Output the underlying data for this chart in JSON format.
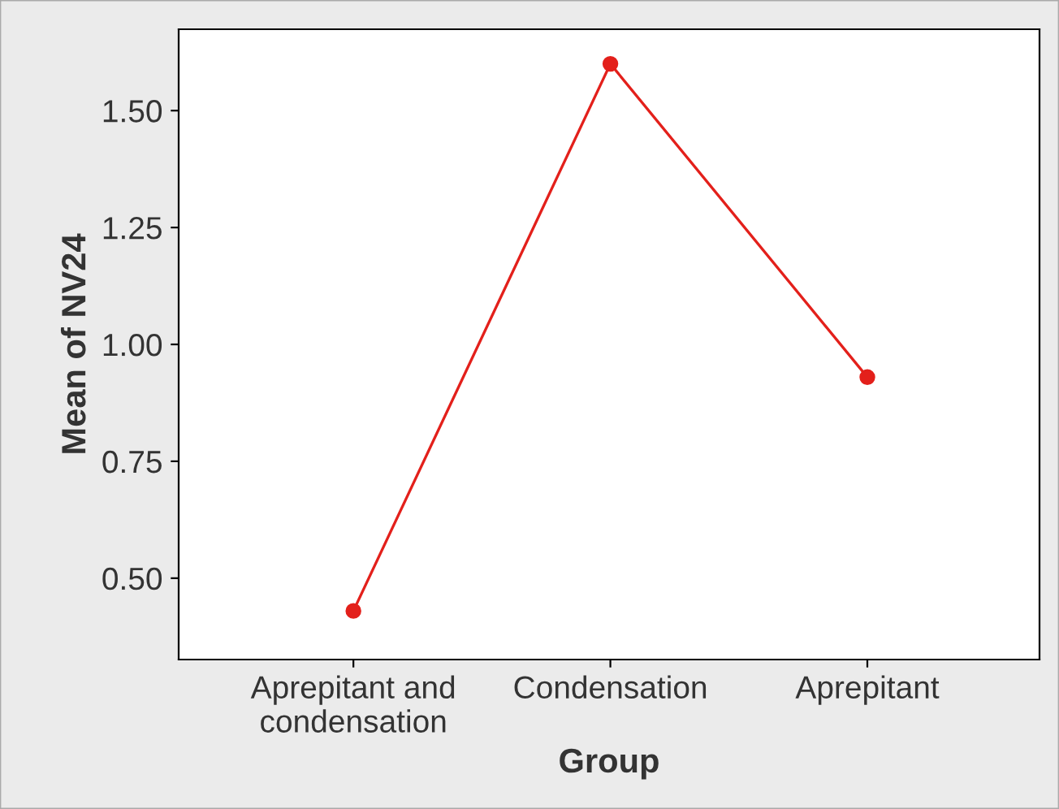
{
  "chart_data": {
    "type": "line",
    "xlabel": "Group",
    "ylabel": "Mean of NV24",
    "categories": [
      "Aprepitant and\ncondensation",
      "Condensation",
      "Aprepitant"
    ],
    "series": [
      {
        "color": "#e3201b",
        "values": [
          0.43,
          1.6,
          0.93
        ]
      }
    ],
    "ylim": [
      0.326,
      1.674
    ],
    "yticks": [
      {
        "value": 0.5,
        "label": "0.50"
      },
      {
        "value": 0.75,
        "label": "0.75"
      },
      {
        "value": 1.0,
        "label": "1.00"
      },
      {
        "value": 1.25,
        "label": "1.25"
      },
      {
        "value": 1.5,
        "label": "1.50"
      }
    ],
    "marker": "circle",
    "line_style": "solid",
    "grid": false,
    "legend": false
  }
}
